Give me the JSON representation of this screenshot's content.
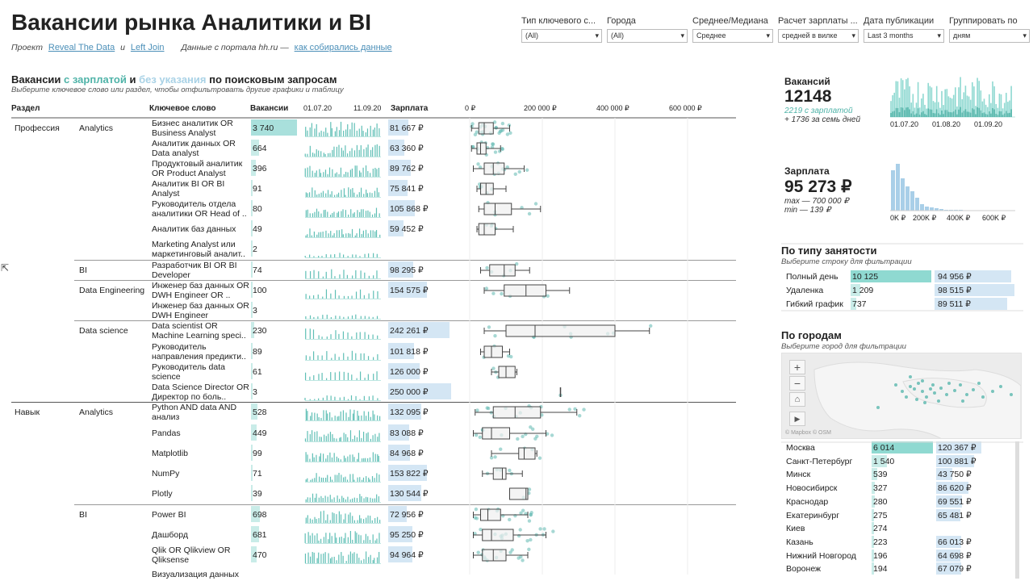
{
  "header": {
    "title": "Вакансии рынка Аналитики и BI",
    "project_label": "Проект",
    "link1": "Reveal The Data",
    "and": "и",
    "link2": "Left Join",
    "source_text": "Данные с портала hh.ru —",
    "link3": "как собирались данные"
  },
  "filters": [
    {
      "label": "Тип ключевого с...",
      "value": "(All)"
    },
    {
      "label": "Города",
      "value": "(All)"
    },
    {
      "label": "Среднее/Медиана",
      "value": "Среднее"
    },
    {
      "label": "Расчет зарплаты ...",
      "value": "средней в вилке"
    },
    {
      "label": "Дата публикации",
      "value": "Last 3 months"
    },
    {
      "label": "Группировать по",
      "value": "дням"
    }
  ],
  "section": {
    "t0": "Вакансии",
    "t1": "с зарплатой",
    "t_and": "и",
    "t2": "без указания",
    "t3": "по поисковым запросам",
    "hint": "Выберите ключевое слово или раздел, чтобы отфильтровать другие графики и таблицу"
  },
  "columns": {
    "section": "Раздел",
    "keyword": "Ключевое слово",
    "vacancies": "Вакансии",
    "date1": "01.07.20",
    "date2": "11.09.20",
    "salary": "Зарплата",
    "ticks": [
      "0 ₽",
      "200 000 ₽",
      "400 000 ₽",
      "600 000 ₽"
    ]
  },
  "rows": [
    {
      "section": "Профессия",
      "group": "Analytics",
      "kw": "Бизнес аналитик OR Business Analyst",
      "count": "3 740",
      "cnum": 3740,
      "sal": "81 667 ₽",
      "snum": 81667,
      "bmin": 5,
      "q1": 25,
      "med": 40,
      "q3": 65,
      "bmax": 110,
      "dots": 22
    },
    {
      "section": "",
      "group": "",
      "kw": "Аналитик данных OR Data analyst",
      "count": "664",
      "cnum": 664,
      "sal": "63 360 ₽",
      "snum": 63360,
      "bmin": 5,
      "q1": 20,
      "med": 30,
      "q3": 45,
      "bmax": 85,
      "dots": 14
    },
    {
      "section": "",
      "group": "",
      "kw": "Продуктовый аналитик OR Product Analyst",
      "count": "396",
      "cnum": 396,
      "sal": "89 762 ₽",
      "snum": 89762,
      "bmin": 10,
      "q1": 40,
      "med": 65,
      "q3": 95,
      "bmax": 150,
      "dots": 12
    },
    {
      "section": "",
      "group": "",
      "kw": "Аналитик BI OR BI Analyst",
      "count": "91",
      "cnum": 91,
      "sal": "75 841 ₽",
      "snum": 75841,
      "bmin": 20,
      "q1": 30,
      "med": 45,
      "q3": 65,
      "bmax": 100,
      "dots": 6
    },
    {
      "section": "",
      "group": "",
      "kw": "Руководитель отдела аналитики OR Head of ..",
      "count": "80",
      "cnum": 80,
      "sal": "105 868 ₽",
      "snum": 105868,
      "bmin": 25,
      "q1": 40,
      "med": 70,
      "q3": 115,
      "bmax": 195,
      "dots": 6
    },
    {
      "section": "",
      "group": "",
      "kw": "Аналитик баз данных",
      "count": "49",
      "cnum": 49,
      "sal": "59 452 ₽",
      "snum": 59452,
      "bmin": 20,
      "q1": 25,
      "med": 40,
      "q3": 70,
      "bmax": 120,
      "dots": 4
    },
    {
      "section": "",
      "group": "",
      "kw": "Marketing Analyst или маркетинговый аналит..",
      "count": "2",
      "cnum": 2,
      "sal": "",
      "snum": 0,
      "bmin": 0,
      "q1": 0,
      "med": 0,
      "q3": 0,
      "bmax": 0,
      "dots": 0
    },
    {
      "section": "",
      "group": "BI",
      "kw": "Разработчик BI OR BI Developer",
      "count": "74",
      "cnum": 74,
      "sal": "98 295 ₽",
      "snum": 98295,
      "bmin": 30,
      "q1": 55,
      "med": 95,
      "q3": 125,
      "bmax": 165,
      "dots": 5
    },
    {
      "section": "",
      "group": "Data Engineering",
      "kw": "Инженер баз данных OR DWH Engineer OR ..",
      "count": "100",
      "cnum": 100,
      "sal": "154 575 ₽",
      "snum": 154575,
      "bmin": 40,
      "q1": 95,
      "med": 155,
      "q3": 210,
      "bmax": 275,
      "dots": 6
    },
    {
      "section": "",
      "group": "",
      "kw": "Инженер баз данных OR DWH Engineer",
      "count": "3",
      "cnum": 3,
      "sal": "",
      "snum": 0,
      "bmin": 0,
      "q1": 0,
      "med": 0,
      "q3": 0,
      "bmax": 0,
      "dots": 0
    },
    {
      "section": "",
      "group": "Data science",
      "kw": "Data scientist OR Machine Learning speci..",
      "count": "230",
      "cnum": 230,
      "sal": "242 261 ₽",
      "snum": 242261,
      "bmin": 40,
      "q1": 100,
      "med": 180,
      "q3": 400,
      "bmax": 495,
      "dots": 10
    },
    {
      "section": "",
      "group": "",
      "kw": "Руководитель направления предикти..",
      "count": "89",
      "cnum": 89,
      "sal": "101 818 ₽",
      "snum": 101818,
      "bmin": 30,
      "q1": 40,
      "med": 60,
      "q3": 90,
      "bmax": 110,
      "dots": 4
    },
    {
      "section": "",
      "group": "",
      "kw": "Руководитель data science",
      "count": "61",
      "cnum": 61,
      "sal": "126 000 ₽",
      "snum": 126000,
      "bmin": 60,
      "q1": 80,
      "med": 100,
      "q3": 125,
      "bmax": 130,
      "dots": 3
    },
    {
      "section": "",
      "group": "",
      "kw": "Data Science Director OR Директор по боль..",
      "count": "3",
      "cnum": 3,
      "sal": "250 000 ₽",
      "snum": 250000,
      "bmin": 250,
      "q1": 250,
      "med": 250,
      "q3": 250,
      "bmax": 250,
      "dots": 1
    },
    {
      "section": "Навык",
      "group": "Analytics",
      "kw": "Python AND data AND анализ",
      "count": "528",
      "cnum": 528,
      "sal": "132 095 ₽",
      "snum": 132095,
      "bmin": 15,
      "q1": 65,
      "med": 125,
      "q3": 195,
      "bmax": 295,
      "dots": 16
    },
    {
      "section": "",
      "group": "",
      "kw": "Pandas",
      "count": "449",
      "cnum": 449,
      "sal": "83 088 ₽",
      "snum": 83088,
      "bmin": 10,
      "q1": 35,
      "med": 60,
      "q3": 110,
      "bmax": 210,
      "dots": 14
    },
    {
      "section": "",
      "group": "",
      "kw": "Matplotlib",
      "count": "99",
      "cnum": 99,
      "sal": "84 968 ₽",
      "snum": 84968,
      "bmin": 60,
      "q1": 135,
      "med": 150,
      "q3": 180,
      "bmax": 185,
      "dots": 6
    },
    {
      "section": "",
      "group": "",
      "kw": "NumPy",
      "count": "71",
      "cnum": 71,
      "sal": "153 822 ₽",
      "snum": 153822,
      "bmin": 35,
      "q1": 65,
      "med": 90,
      "q3": 100,
      "bmax": 145,
      "dots": 5
    },
    {
      "section": "",
      "group": "",
      "kw": "Plotly",
      "count": "39",
      "cnum": 39,
      "sal": "130 544 ₽",
      "snum": 130544,
      "bmin": 110,
      "q1": 110,
      "med": 155,
      "q3": 160,
      "bmax": 160,
      "dots": 3
    },
    {
      "section": "",
      "group": "BI",
      "kw": "Power BI",
      "count": "698",
      "cnum": 698,
      "sal": "72 956 ₽",
      "snum": 72956,
      "bmin": 10,
      "q1": 30,
      "med": 50,
      "q3": 85,
      "bmax": 160,
      "dots": 16
    },
    {
      "section": "",
      "group": "",
      "kw": "Дашборд",
      "count": "681",
      "cnum": 681,
      "sal": "95 250 ₽",
      "snum": 95250,
      "bmin": 10,
      "q1": 35,
      "med": 60,
      "q3": 120,
      "bmax": 210,
      "dots": 16
    },
    {
      "section": "",
      "group": "",
      "kw": "Qlik OR Qlikview OR Qliksense",
      "count": "470",
      "cnum": 470,
      "sal": "94 964 ₽",
      "snum": 94964,
      "bmin": 10,
      "q1": 35,
      "med": 65,
      "q3": 100,
      "bmax": 160,
      "dots": 14
    },
    {
      "section": "",
      "group": "",
      "kw": "Визуализация данных",
      "count": "",
      "cnum": 0,
      "sal": "",
      "snum": 0,
      "bmin": 0,
      "q1": 0,
      "med": 0,
      "q3": 0,
      "bmax": 0,
      "dots": 0
    }
  ],
  "kpi": {
    "vac_label": "Вакансий",
    "vac_num": "12148",
    "vac_sub1": "2219 с зарплатой",
    "vac_sub2": "+ 1736 за семь дней",
    "vac_ticks": [
      "01.07.20",
      "01.08.20",
      "01.09.20"
    ],
    "sal_label": "Зарплата",
    "sal_num": "95 273 ₽",
    "sal_max": "max — 700 000 ₽",
    "sal_min": "min — 139 ₽",
    "sal_ticks": [
      "0K ₽",
      "200K ₽",
      "400K ₽",
      "600K ₽"
    ]
  },
  "employment": {
    "title": "По типу занятости",
    "hint": "Выберите строку для фильтрации",
    "rows": [
      {
        "name": "Полный день",
        "count": "10 125",
        "cnum": 10125,
        "sal": "94 956 ₽",
        "snum": 94956
      },
      {
        "name": "Удаленка",
        "count": "1 209",
        "cnum": 1209,
        "sal": "98 515 ₽",
        "snum": 98515
      },
      {
        "name": "Гибкий график",
        "count": "737",
        "cnum": 737,
        "sal": "89 511 ₽",
        "snum": 89511
      }
    ]
  },
  "cities": {
    "title": "По городам",
    "hint": "Выберите город для фильтрации",
    "map_credit": "© Mapbox © OSM",
    "rows": [
      {
        "name": "Москва",
        "count": "6 014",
        "cnum": 6014,
        "sal": "120 367 ₽",
        "snum": 120367
      },
      {
        "name": "Санкт-Петербург",
        "count": "1 540",
        "cnum": 1540,
        "sal": "100 881 ₽",
        "snum": 100881
      },
      {
        "name": "Минск",
        "count": "539",
        "cnum": 539,
        "sal": "43 750 ₽",
        "snum": 43750
      },
      {
        "name": "Новосибирск",
        "count": "327",
        "cnum": 327,
        "sal": "86 620 ₽",
        "snum": 86620
      },
      {
        "name": "Краснодар",
        "count": "280",
        "cnum": 280,
        "sal": "69 551 ₽",
        "snum": 69551
      },
      {
        "name": "Екатеринбург",
        "count": "275",
        "cnum": 275,
        "sal": "65 481 ₽",
        "snum": 65481
      },
      {
        "name": "Киев",
        "count": "274",
        "cnum": 274,
        "sal": "",
        "snum": 0
      },
      {
        "name": "Казань",
        "count": "223",
        "cnum": 223,
        "sal": "66 013 ₽",
        "snum": 66013
      },
      {
        "name": "Нижний Новгород",
        "count": "196",
        "cnum": 196,
        "sal": "64 698 ₽",
        "snum": 64698
      },
      {
        "name": "Воронеж",
        "count": "194",
        "cnum": 194,
        "sal": "67 079 ₽",
        "snum": 67079
      }
    ]
  },
  "colors": {
    "teal": "#8fd9d1",
    "teal_dark": "#4fb3a8",
    "blue": "#d4e6f4",
    "dot": "#5fb8b0"
  }
}
